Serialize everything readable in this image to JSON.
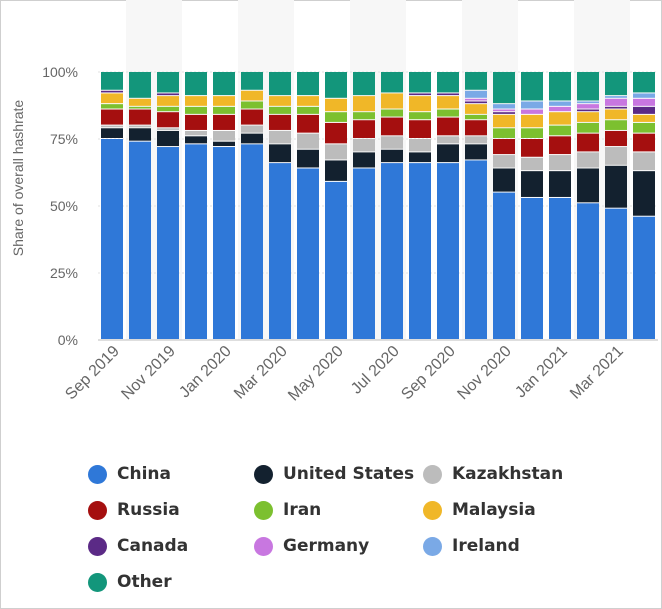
{
  "chart_data": {
    "type": "bar",
    "stacked": true,
    "percent": true,
    "ylabel": "Share of overall hashrate",
    "ylim": [
      0,
      100
    ],
    "yticks": [
      "0%",
      "25%",
      "50%",
      "75%",
      "100%"
    ],
    "grid": true,
    "months": [
      "Sep 2019",
      "Oct 2019",
      "Nov 2019",
      "Dec 2019",
      "Jan 2020",
      "Feb 2020",
      "Mar 2020",
      "Apr 2020",
      "May 2020",
      "Jun 2020",
      "Jul 2020",
      "Aug 2020",
      "Sep 2020",
      "Oct 2020",
      "Nov 2020",
      "Dec 2020",
      "Jan 2021",
      "Feb 2021",
      "Mar 2021",
      "Apr 2021"
    ],
    "xtick_labels": [
      "Sep 2019",
      "Nov 2019",
      "Jan 2020",
      "Mar 2020",
      "May 2020",
      "Jul 2020",
      "Sep 2020",
      "Nov 2020",
      "Jan 2021",
      "Mar 2021"
    ],
    "legend_position": "bottom",
    "series": [
      {
        "name": "China",
        "color": "#2f78d8",
        "values": [
          75,
          74,
          72,
          73,
          72,
          73,
          66,
          64,
          59,
          64,
          66,
          66,
          66,
          67,
          55,
          53,
          53,
          51,
          49,
          46
        ]
      },
      {
        "name": "United States",
        "color": "#13212f",
        "values": [
          4,
          5,
          6,
          3,
          2,
          4,
          7,
          7,
          8,
          6,
          5,
          4,
          7,
          6,
          9,
          10,
          10,
          13,
          16,
          17
        ]
      },
      {
        "name": "Kazakhstan",
        "color": "#bcbcbc",
        "values": [
          1,
          1,
          1,
          2,
          4,
          3,
          5,
          6,
          6,
          5,
          5,
          5,
          3,
          3,
          5,
          5,
          6,
          6,
          7,
          7
        ]
      },
      {
        "name": "Russia",
        "color": "#a50f0f",
        "values": [
          6,
          6,
          6,
          6,
          6,
          6,
          6,
          7,
          8,
          7,
          7,
          7,
          7,
          6,
          6,
          7,
          7,
          7,
          6,
          7
        ]
      },
      {
        "name": "Iran",
        "color": "#7cc02f",
        "values": [
          2,
          1,
          2,
          3,
          3,
          3,
          3,
          3,
          4,
          3,
          3,
          3,
          3,
          2,
          4,
          4,
          4,
          4,
          4,
          4
        ]
      },
      {
        "name": "Malaysia",
        "color": "#f0b728",
        "values": [
          4,
          3,
          4,
          4,
          4,
          4,
          4,
          4,
          5,
          6,
          6,
          6,
          5,
          4,
          5,
          5,
          5,
          4,
          4,
          3
        ]
      },
      {
        "name": "Canada",
        "color": "#5b2a86",
        "values": [
          1,
          0,
          1,
          0,
          0,
          0,
          0,
          0,
          0,
          0,
          0,
          1,
          1,
          1,
          1,
          0,
          0,
          1,
          1,
          3
        ]
      },
      {
        "name": "Germany",
        "color": "#c877e0",
        "values": [
          0,
          0,
          0,
          0,
          0,
          0,
          0,
          0,
          0,
          0,
          0,
          0,
          0,
          1,
          1,
          2,
          2,
          2,
          3,
          3
        ]
      },
      {
        "name": "Ireland",
        "color": "#7aa9e6",
        "values": [
          0,
          0,
          0,
          0,
          0,
          0,
          0,
          0,
          0,
          0,
          0,
          0,
          0,
          3,
          2,
          3,
          2,
          1,
          1,
          2
        ]
      },
      {
        "name": "Other",
        "color": "#13967b",
        "values": [
          7,
          10,
          8,
          9,
          9,
          7,
          9,
          9,
          10,
          9,
          8,
          8,
          8,
          7,
          12,
          11,
          11,
          11,
          9,
          8
        ]
      }
    ]
  }
}
